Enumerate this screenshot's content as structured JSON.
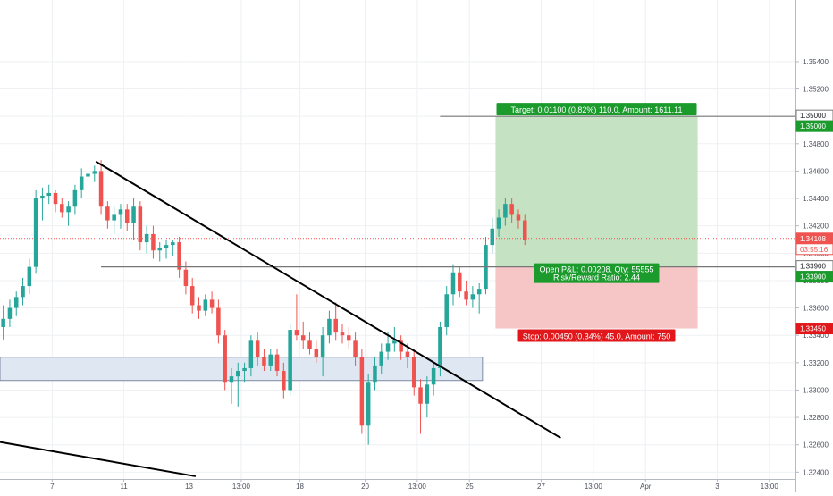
{
  "chart_data": {
    "type": "candlestick",
    "y_range": [
      1.3235,
      1.3585
    ],
    "x_range": [
      0,
      122
    ],
    "y_ticks": [
      "1.35400",
      "1.35200",
      "1.35000",
      "1.34800",
      "1.34600",
      "1.34400",
      "1.34200",
      "1.34000",
      "1.33800",
      "1.33600",
      "1.33400",
      "1.33200",
      "1.33000",
      "1.32800",
      "1.32600",
      "1.32400"
    ],
    "y_tick_values": [
      1.354,
      1.352,
      1.35,
      1.348,
      1.346,
      1.344,
      1.342,
      1.34,
      1.338,
      1.336,
      1.334,
      1.332,
      1.33,
      1.328,
      1.326,
      1.324
    ],
    "x_ticks": [
      "7",
      "11",
      "13",
      "13:00",
      "18",
      "20",
      "13:00",
      "25",
      "27",
      "13:00",
      "Apr",
      "3",
      "13:00"
    ],
    "x_tick_values": [
      8,
      19,
      29,
      37,
      46,
      56,
      64,
      72,
      83,
      91,
      99,
      110,
      118
    ],
    "candles": [
      [
        1.3346,
        1.3362,
        1.3337,
        1.3352
      ],
      [
        1.3352,
        1.3366,
        1.3346,
        1.336
      ],
      [
        1.336,
        1.3372,
        1.3354,
        1.3368
      ],
      [
        1.3368,
        1.3382,
        1.3362,
        1.3376
      ],
      [
        1.3376,
        1.3396,
        1.337,
        1.339
      ],
      [
        1.339,
        1.3446,
        1.3385,
        1.344
      ],
      [
        1.344,
        1.3448,
        1.3424,
        1.3442
      ],
      [
        1.3442,
        1.345,
        1.3436,
        1.3444
      ],
      [
        1.3444,
        1.3446,
        1.343,
        1.3436
      ],
      [
        1.3436,
        1.344,
        1.3426,
        1.343
      ],
      [
        1.343,
        1.3438,
        1.342,
        1.3434
      ],
      [
        1.3434,
        1.345,
        1.3428,
        1.3446
      ],
      [
        1.3446,
        1.3462,
        1.344,
        1.3456
      ],
      [
        1.3456,
        1.346,
        1.3448,
        1.3458
      ],
      [
        1.3458,
        1.3464,
        1.3452,
        1.346
      ],
      [
        1.346,
        1.3468,
        1.3428,
        1.3434
      ],
      [
        1.3434,
        1.3438,
        1.3418,
        1.3424
      ],
      [
        1.3424,
        1.3434,
        1.3414,
        1.3428
      ],
      [
        1.3428,
        1.3436,
        1.3418,
        1.3432
      ],
      [
        1.3432,
        1.3436,
        1.3416,
        1.3422
      ],
      [
        1.3422,
        1.344,
        1.341,
        1.3434
      ],
      [
        1.3434,
        1.3438,
        1.3402,
        1.3408
      ],
      [
        1.3408,
        1.342,
        1.34,
        1.3414
      ],
      [
        1.3414,
        1.342,
        1.3396,
        1.3402
      ],
      [
        1.3402,
        1.3408,
        1.3394,
        1.3404
      ],
      [
        1.3404,
        1.341,
        1.3396,
        1.3406
      ],
      [
        1.3406,
        1.341,
        1.3398,
        1.3408
      ],
      [
        1.3408,
        1.3412,
        1.3382,
        1.3388
      ],
      [
        1.3388,
        1.3394,
        1.337,
        1.3376
      ],
      [
        1.3376,
        1.3382,
        1.3356,
        1.3362
      ],
      [
        1.3362,
        1.3368,
        1.3352,
        1.3358
      ],
      [
        1.3358,
        1.337,
        1.3354,
        1.3366
      ],
      [
        1.3366,
        1.3372,
        1.3356,
        1.336
      ],
      [
        1.336,
        1.3366,
        1.3334,
        1.334
      ],
      [
        1.334,
        1.3344,
        1.33,
        1.3306
      ],
      [
        1.3306,
        1.3316,
        1.329,
        1.331
      ],
      [
        1.331,
        1.332,
        1.3288,
        1.3314
      ],
      [
        1.3314,
        1.332,
        1.3306,
        1.3316
      ],
      [
        1.3316,
        1.334,
        1.331,
        1.3336
      ],
      [
        1.3336,
        1.3342,
        1.3318,
        1.3324
      ],
      [
        1.3324,
        1.333,
        1.3314,
        1.3318
      ],
      [
        1.3318,
        1.333,
        1.3314,
        1.3326
      ],
      [
        1.3326,
        1.333,
        1.331,
        1.3314
      ],
      [
        1.3314,
        1.332,
        1.3294,
        1.33
      ],
      [
        1.33,
        1.3348,
        1.3296,
        1.3344
      ],
      [
        1.3344,
        1.337,
        1.3336,
        1.334
      ],
      [
        1.334,
        1.335,
        1.333,
        1.3336
      ],
      [
        1.3336,
        1.3342,
        1.3326,
        1.333
      ],
      [
        1.333,
        1.3336,
        1.332,
        1.3324
      ],
      [
        1.3324,
        1.3346,
        1.331,
        1.334
      ],
      [
        1.334,
        1.3358,
        1.3334,
        1.3352
      ],
      [
        1.3352,
        1.3364,
        1.3336,
        1.3342
      ],
      [
        1.3342,
        1.3348,
        1.3334,
        1.334
      ],
      [
        1.334,
        1.3346,
        1.333,
        1.3336
      ],
      [
        1.3336,
        1.3342,
        1.3318,
        1.3324
      ],
      [
        1.3324,
        1.333,
        1.3268,
        1.3274
      ],
      [
        1.3274,
        1.3312,
        1.326,
        1.3306
      ],
      [
        1.3306,
        1.3324,
        1.33,
        1.3318
      ],
      [
        1.3318,
        1.3334,
        1.3312,
        1.3328
      ],
      [
        1.3328,
        1.3342,
        1.3322,
        1.3334
      ],
      [
        1.3334,
        1.3346,
        1.3328,
        1.3336
      ],
      [
        1.3336,
        1.334,
        1.3322,
        1.3328
      ],
      [
        1.3328,
        1.3334,
        1.3316,
        1.3324
      ],
      [
        1.3324,
        1.333,
        1.3296,
        1.3302
      ],
      [
        1.3302,
        1.3308,
        1.3268,
        1.329
      ],
      [
        1.329,
        1.331,
        1.328,
        1.3304
      ],
      [
        1.3304,
        1.332,
        1.3296,
        1.3316
      ],
      [
        1.3316,
        1.335,
        1.331,
        1.3346
      ],
      [
        1.3346,
        1.3376,
        1.334,
        1.337
      ],
      [
        1.337,
        1.3392,
        1.3362,
        1.3386
      ],
      [
        1.3386,
        1.339,
        1.3368,
        1.3372
      ],
      [
        1.3372,
        1.338,
        1.3362,
        1.3366
      ],
      [
        1.3366,
        1.3376,
        1.336,
        1.337
      ],
      [
        1.337,
        1.3378,
        1.3356,
        1.3374
      ],
      [
        1.3374,
        1.3412,
        1.337,
        1.3406
      ],
      [
        1.3406,
        1.3426,
        1.34,
        1.3418
      ],
      [
        1.3418,
        1.3432,
        1.3412,
        1.3426
      ],
      [
        1.3426,
        1.344,
        1.342,
        1.3436
      ],
      [
        1.3436,
        1.344,
        1.3422,
        1.3428
      ],
      [
        1.3428,
        1.3432,
        1.3418,
        1.3424
      ],
      [
        1.3424,
        1.3428,
        1.3406,
        1.341
      ]
    ],
    "annotations": {
      "target_price": 1.35,
      "entry_price": 1.339,
      "stop_price": 1.3345,
      "current_price": 1.34108,
      "target_label": "Target: 0.01100 (0.82%) 110.0, Amount: 1611.11",
      "pnl_label_1": "Open P&L: 0.00208, Qty: 55555",
      "pnl_label_2": "Risk/Reward Ratio: 2.44",
      "stop_label": "Stop: 0.00450 (0.34%) 45.0, Amount: 750",
      "price_tags": [
        "1.35000",
        "1.35000",
        "1.34108",
        "03:55:16",
        "1.33900",
        "1.33900",
        "1.33450"
      ]
    },
    "colors": {
      "up": "#26a69a",
      "down": "#ef5350",
      "profit_zone": "#c5e2c2",
      "loss_zone": "#f5c6c5",
      "support_zone": "#dfe7f2",
      "target_tag": "#1a9b2c",
      "stop_tag": "#e1171b",
      "line": "#000000"
    }
  }
}
